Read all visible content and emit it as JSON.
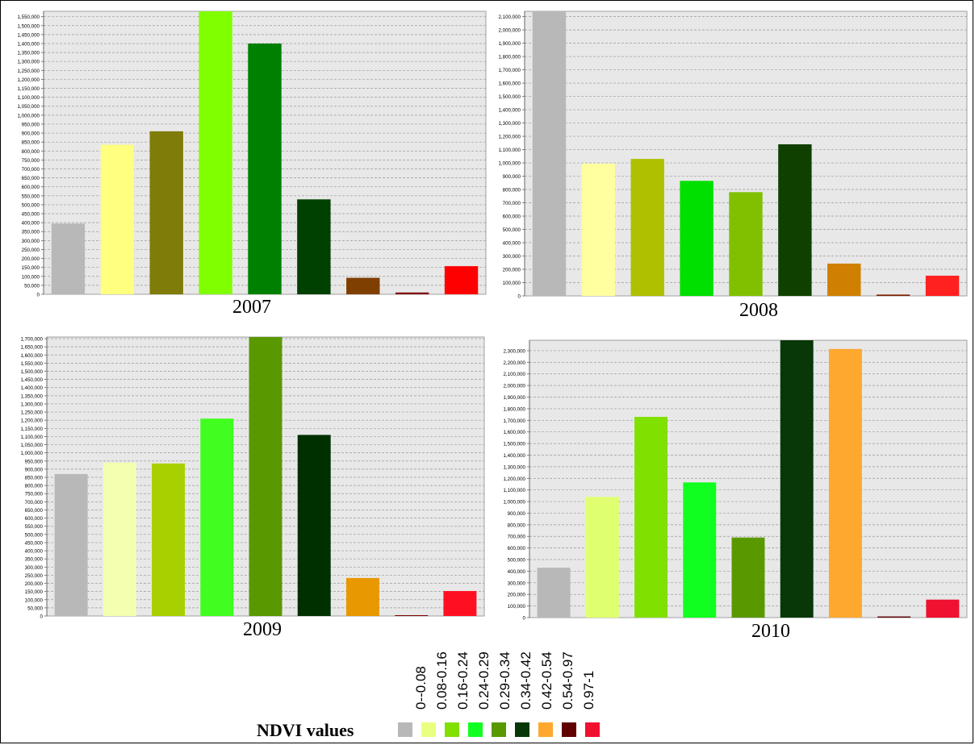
{
  "chart_data": [
    {
      "type": "bar",
      "title": "2007",
      "categories": [
        "0--0.08",
        "0.08-0.16",
        "0.16-0.24",
        "0.24-0.29",
        "0.29-0.34",
        "0.34-0.42",
        "0.42-0.54",
        "0.54-0.97",
        "0.97-1"
      ],
      "values": [
        395000,
        835000,
        910000,
        1580000,
        1400000,
        530000,
        92000,
        10000,
        157000
      ],
      "colors": [
        "#b8b8b8",
        "#ffff80",
        "#7f7c0a",
        "#80ff00",
        "#008000",
        "#004000",
        "#7f3f00",
        "#7f0000",
        "#ff0000"
      ],
      "ylim": [
        0,
        1580000
      ],
      "ytick_step": 50000,
      "grid": true
    },
    {
      "type": "bar",
      "title": "2008",
      "categories": [
        "0--0.08",
        "0.08-0.16",
        "0.16-0.24",
        "0.24-0.29",
        "0.29-0.34",
        "0.34-0.42",
        "0.42-0.54",
        "0.54-0.97",
        "0.97-1"
      ],
      "values": [
        2140000,
        995000,
        1030000,
        865000,
        780000,
        1140000,
        243000,
        10000,
        152000
      ],
      "colors": [
        "#b8b8b8",
        "#ffffa0",
        "#aec000",
        "#00e000",
        "#80c000",
        "#104000",
        "#d08000",
        "#7f2000",
        "#ff2020"
      ],
      "ylim": [
        0,
        2140000
      ],
      "ytick_step": 100000,
      "grid": true
    },
    {
      "type": "bar",
      "title": "2009",
      "categories": [
        "0--0.08",
        "0.08-0.16",
        "0.16-0.24",
        "0.24-0.29",
        "0.29-0.34",
        "0.34-0.42",
        "0.42-0.54",
        "0.54-0.97",
        "0.97-1"
      ],
      "values": [
        870000,
        940000,
        935000,
        1210000,
        1710000,
        1110000,
        233000,
        5000,
        153000
      ],
      "colors": [
        "#b8b8b8",
        "#f4ffb0",
        "#a8d000",
        "#40ff20",
        "#5a9800",
        "#003000",
        "#e89800",
        "#7f0000",
        "#ff1020"
      ],
      "ylim": [
        0,
        1710000
      ],
      "ytick_step": 50000,
      "grid": true
    },
    {
      "type": "bar",
      "title": "2010",
      "categories": [
        "0--0.08",
        "0.08-0.16",
        "0.16-0.24",
        "0.24-0.29",
        "0.29-0.34",
        "0.34-0.42",
        "0.42-0.54",
        "0.54-0.97",
        "0.97-1"
      ],
      "values": [
        430000,
        1040000,
        1730000,
        1165000,
        690000,
        2390000,
        2315000,
        10000,
        155000
      ],
      "colors": [
        "#b8b8b8",
        "#e0ff70",
        "#80e000",
        "#10ff20",
        "#5a9800",
        "#083808",
        "#ffa830",
        "#600000",
        "#f01030"
      ],
      "ylim": [
        0,
        2390000
      ],
      "ytick_step": 100000,
      "grid": true
    }
  ],
  "legend": {
    "title": "NDVI values",
    "items": [
      {
        "label": "0--0.08",
        "color": "#b8b8b8"
      },
      {
        "label": "0.08-0.16",
        "color": "#e8ff80"
      },
      {
        "label": "0.16-0.24",
        "color": "#80e000"
      },
      {
        "label": "0.24-0.29",
        "color": "#10ff20"
      },
      {
        "label": "0.29-0.34",
        "color": "#5a9800"
      },
      {
        "label": "0.34-0.42",
        "color": "#083808"
      },
      {
        "label": "0.42-0.54",
        "color": "#ffa830"
      },
      {
        "label": "0.54-0.97",
        "color": "#600000"
      },
      {
        "label": "0.97-1",
        "color": "#f01030"
      }
    ]
  }
}
